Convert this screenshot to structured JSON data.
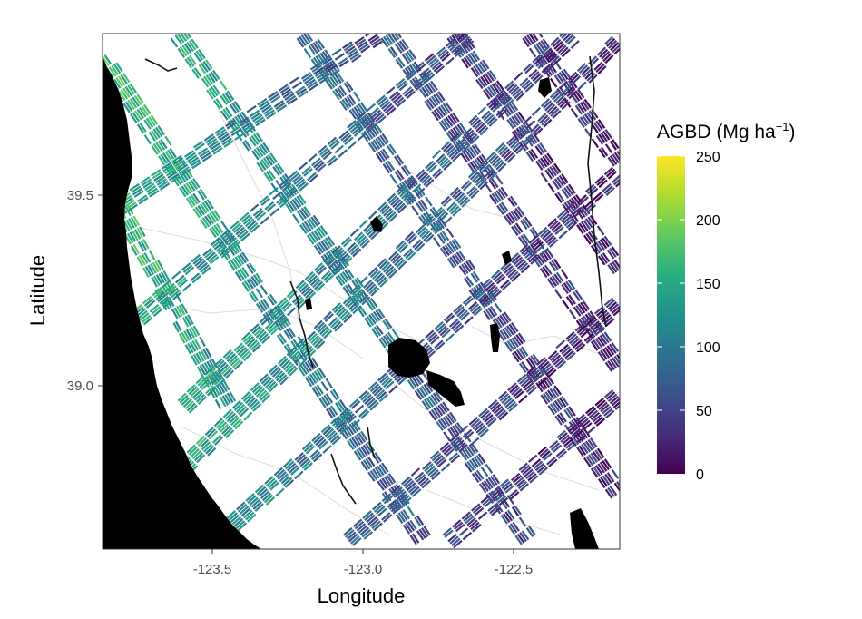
{
  "map": {
    "x_axis": {
      "title": "Longitude",
      "range": [
        -123.87,
        -122.15
      ],
      "ticks": [
        {
          "value": -123.5,
          "label": "-123.5"
        },
        {
          "value": -123.0,
          "label": "-123.0"
        },
        {
          "value": -122.5,
          "label": "-122.5"
        }
      ]
    },
    "y_axis": {
      "title": "Latitude",
      "range": [
        38.58,
        39.92
      ],
      "ticks": [
        {
          "value": 39.5,
          "label": "39.5"
        },
        {
          "value": 39.0,
          "label": "39.0"
        }
      ]
    },
    "legend": {
      "title_main": "AGBD (Mg ha",
      "title_sup": "−1",
      "title_close": ")",
      "placement": "right",
      "range": [
        0,
        250
      ],
      "ticks": [
        {
          "value": 250,
          "label": "250"
        },
        {
          "value": 200,
          "label": "200"
        },
        {
          "value": 150,
          "label": "150"
        },
        {
          "value": 100,
          "label": "100"
        },
        {
          "value": 50,
          "label": "50"
        },
        {
          "value": 0,
          "label": "0"
        }
      ],
      "colormap": "viridis"
    },
    "colors": {
      "land": "#ffffff",
      "ocean": "#000000",
      "water_bodies": "#000000",
      "roads": "#d9d9d9",
      "panel_border": "#333333"
    },
    "tracks": {
      "descending": [
        {
          "start": [
            -123.87,
            39.86
          ],
          "end": [
            -122.8,
            38.6
          ],
          "agbd_high": 170,
          "agbd_low": 60
        },
        {
          "start": [
            -123.62,
            39.92
          ],
          "end": [
            -122.45,
            38.6
          ],
          "agbd_high": 150,
          "agbd_low": 45
        },
        {
          "start": [
            -123.2,
            39.92
          ],
          "end": [
            -122.15,
            38.72
          ],
          "agbd_high": 90,
          "agbd_low": 25
        },
        {
          "start": [
            -122.92,
            39.92
          ],
          "end": [
            -122.15,
            39.05
          ],
          "agbd_high": 70,
          "agbd_low": 20
        },
        {
          "start": [
            -122.7,
            39.92
          ],
          "end": [
            -122.15,
            39.3
          ],
          "agbd_high": 50,
          "agbd_low": 15
        },
        {
          "start": [
            -122.45,
            39.92
          ],
          "end": [
            -122.15,
            39.58
          ],
          "agbd_high": 40,
          "agbd_low": 15
        },
        {
          "start": [
            -123.87,
            39.55
          ],
          "end": [
            -123.45,
            38.95
          ],
          "agbd_high": 180,
          "agbd_low": 120
        },
        {
          "start": [
            -123.87,
            39.05
          ],
          "end": [
            -123.55,
            38.62
          ],
          "agbd_high": 170,
          "agbd_low": 120
        }
      ],
      "ascending": [
        {
          "start": [
            -123.72,
            38.7
          ],
          "end": [
            -122.15,
            39.9
          ],
          "agbd_high": 160,
          "agbd_low": 30
        },
        {
          "start": [
            -123.6,
            38.95
          ],
          "end": [
            -122.3,
            39.92
          ],
          "agbd_high": 150,
          "agbd_low": 35
        },
        {
          "start": [
            -123.75,
            39.18
          ],
          "end": [
            -122.65,
            39.92
          ],
          "agbd_high": 150,
          "agbd_low": 40
        },
        {
          "start": [
            -123.87,
            39.44
          ],
          "end": [
            -122.95,
            39.92
          ],
          "agbd_high": 160,
          "agbd_low": 50
        },
        {
          "start": [
            -123.5,
            38.6
          ],
          "end": [
            -122.15,
            39.56
          ],
          "agbd_high": 120,
          "agbd_low": 25
        },
        {
          "start": [
            -123.05,
            38.6
          ],
          "end": [
            -122.15,
            39.22
          ],
          "agbd_high": 80,
          "agbd_low": 20
        },
        {
          "start": [
            -122.72,
            38.6
          ],
          "end": [
            -122.15,
            38.98
          ],
          "agbd_high": 60,
          "agbd_low": 15
        }
      ]
    }
  }
}
